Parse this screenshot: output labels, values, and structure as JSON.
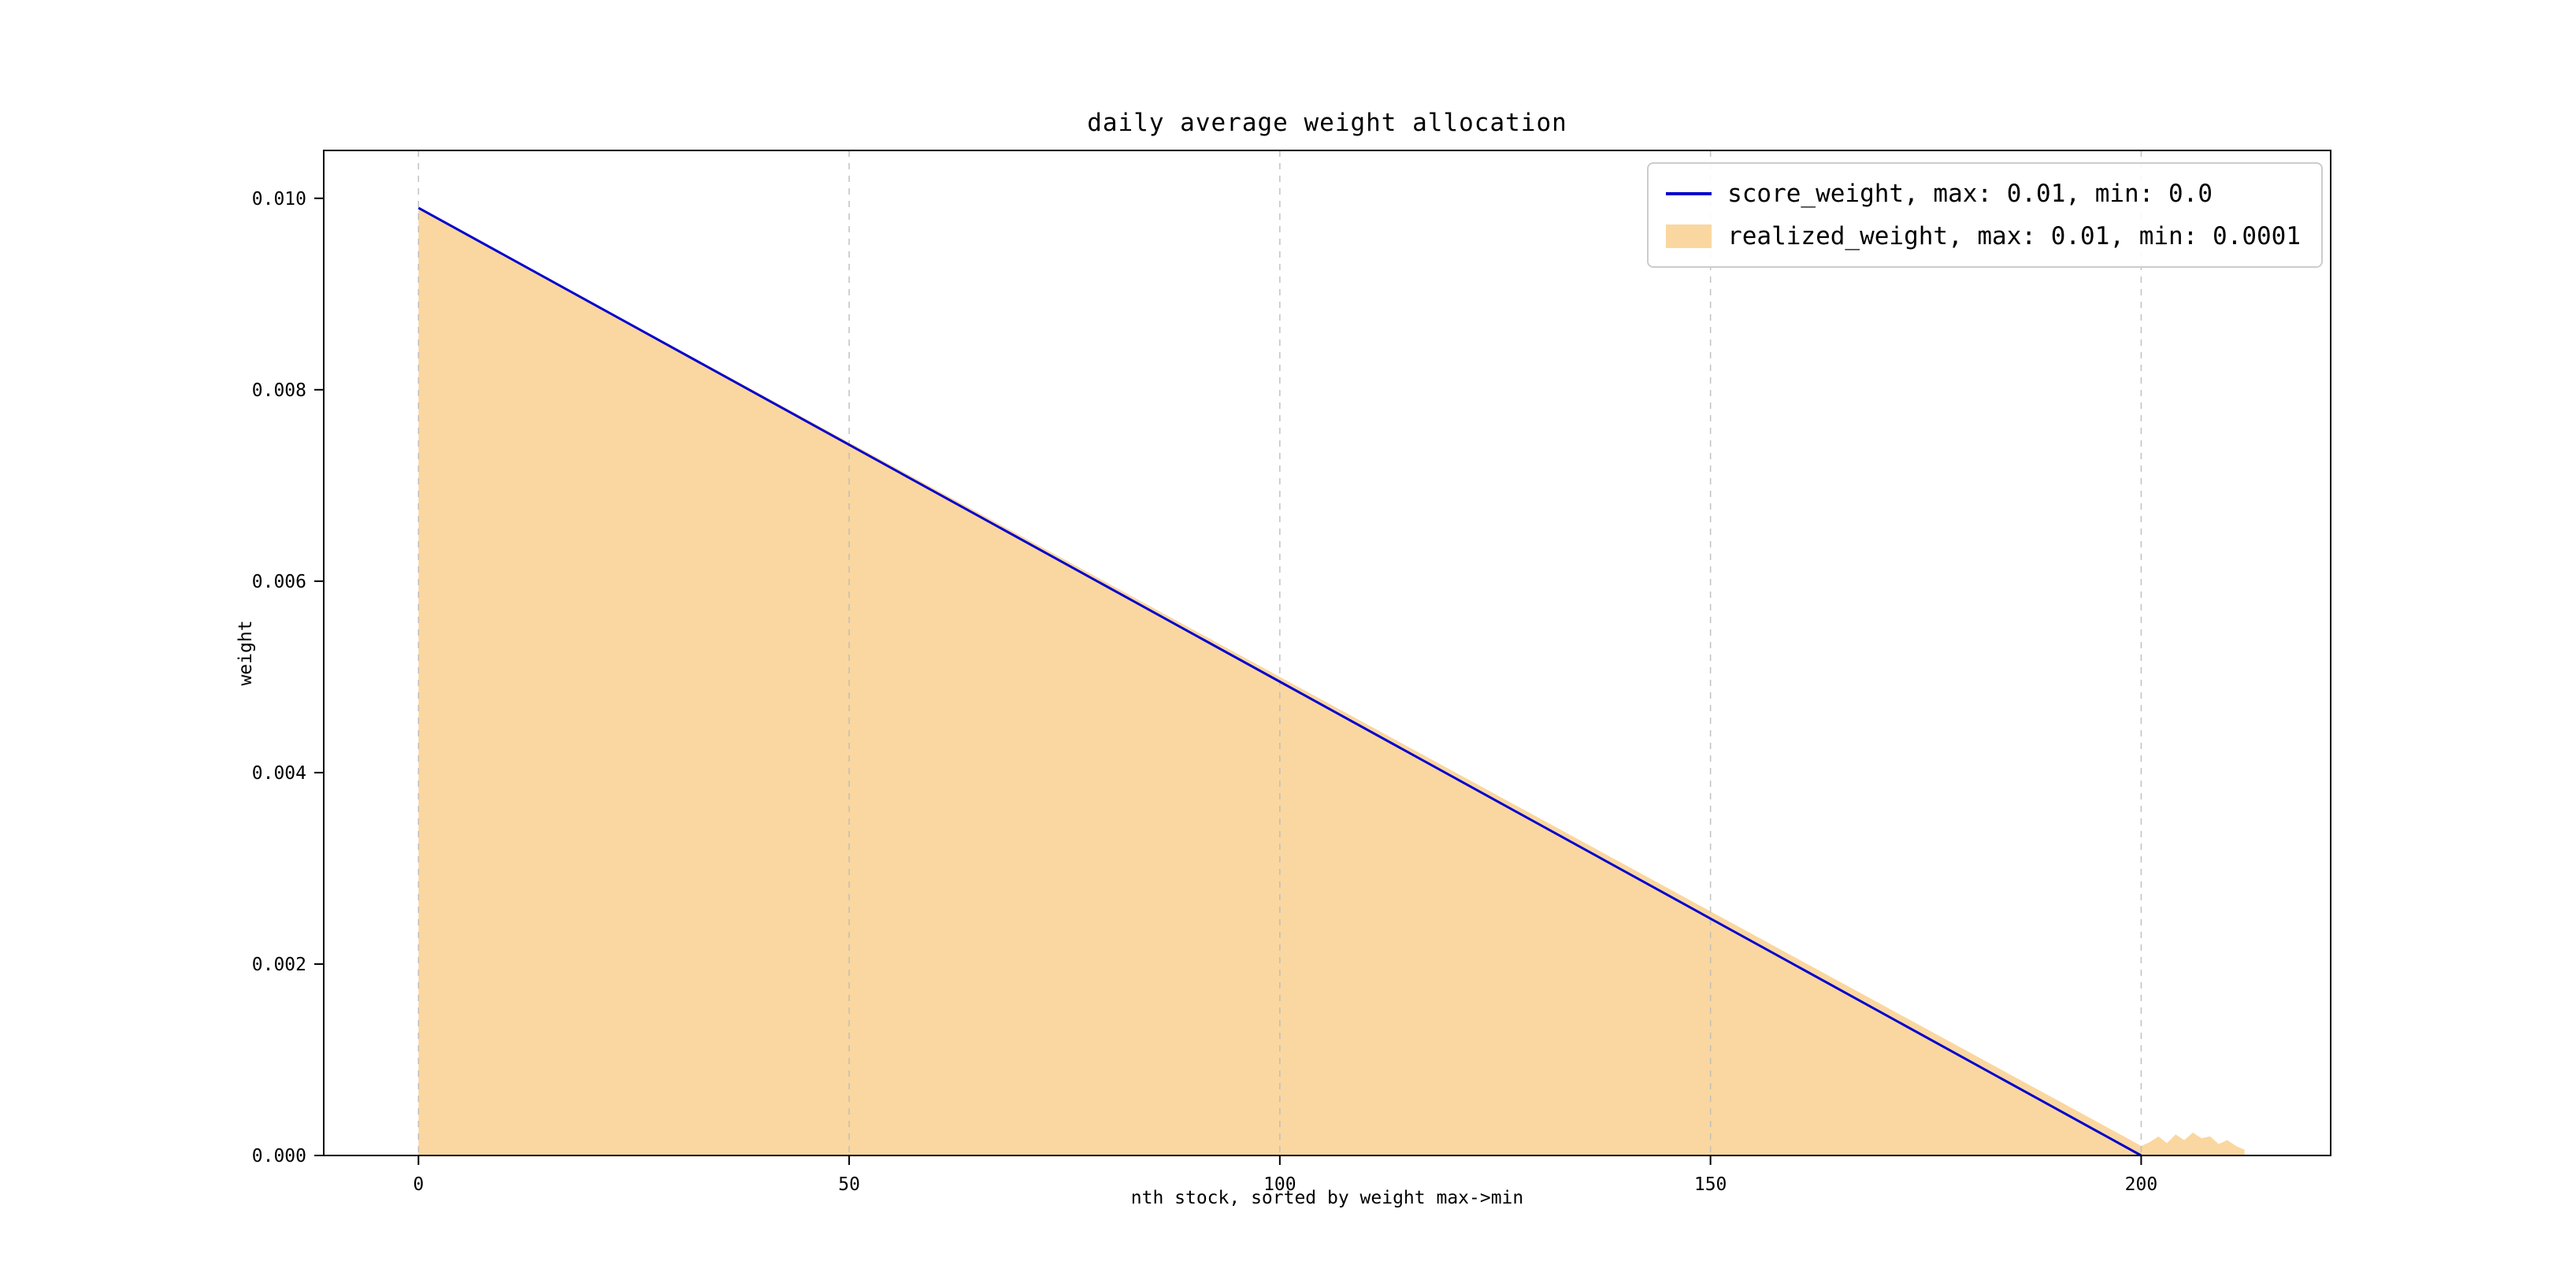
{
  "figure": {
    "background": "#ffffff"
  },
  "colors": {
    "score_line": "#0000cd",
    "realized_fill": "#fad7a0",
    "grid": "#bbbbbb",
    "axis": "#000000",
    "legend_border": "#cccccc"
  },
  "chart_data": {
    "type": "line",
    "title": "daily average weight allocation",
    "xlabel": "nth stock, sorted by weight max->min",
    "ylabel": "weight",
    "xlim": [
      -11,
      222
    ],
    "ylim": [
      0,
      0.0105
    ],
    "x_ticks": [
      0,
      50,
      100,
      150,
      200
    ],
    "y_ticks": [
      0.0,
      0.002,
      0.004,
      0.006,
      0.008,
      0.01
    ],
    "grid": "vertical-dashed",
    "legend_position": "upper right",
    "series": [
      {
        "name": "score_weight, max: 0.01, min: 0.0",
        "kind": "line",
        "color": "#0000cd",
        "x": [
          0,
          200
        ],
        "y": [
          0.0099,
          0.0
        ]
      },
      {
        "name": "realized_weight, max: 0.01, min: 0.0001",
        "kind": "area",
        "color": "#fad7a0",
        "x": [
          0,
          199,
          200,
          201,
          202,
          203,
          204,
          205,
          206,
          207,
          208,
          209,
          210,
          211,
          212
        ],
        "y": [
          0.0099,
          0.00015,
          0.0001,
          0.00014,
          0.0002,
          0.00013,
          0.00022,
          0.00016,
          0.00024,
          0.00018,
          0.0002,
          0.00012,
          0.00016,
          0.0001,
          6e-05
        ]
      }
    ]
  }
}
